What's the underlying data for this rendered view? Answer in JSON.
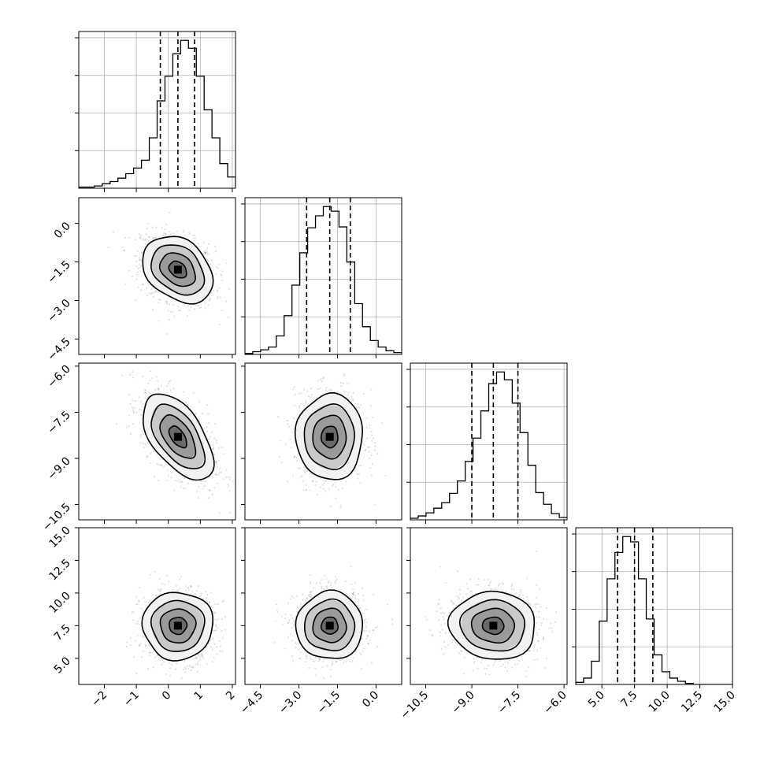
{
  "chart_data": {
    "type": "corner",
    "title": "",
    "grid": true,
    "parameters": [
      {
        "label": "",
        "range": [
          -2.8,
          2.1
        ],
        "ticks": [
          -2,
          -1,
          0,
          1,
          2
        ],
        "tick_labels": [
          "−2",
          "−1",
          "0",
          "1",
          "2"
        ],
        "quantiles": [
          -0.25,
          0.3,
          0.82
        ],
        "hist": {
          "bin_start": -2.8,
          "bin_width": 0.245,
          "counts": [
            1,
            1,
            2,
            4,
            6,
            9,
            13,
            18,
            25,
            45,
            78,
            100,
            120,
            132,
            125,
            100,
            70,
            45,
            22,
            10,
            2
          ]
        }
      },
      {
        "label": "",
        "range": [
          -5.1,
          1.0
        ],
        "ticks": [
          -4.5,
          -3.0,
          -1.5,
          0.0
        ],
        "tick_labels": [
          "−4.5",
          "−3.0",
          "−1.5",
          "0.0"
        ],
        "quantiles": [
          -2.7,
          -1.8,
          -1.0
        ],
        "hist": {
          "bin_start": -5.1,
          "bin_width": 0.305,
          "counts": [
            1,
            3,
            5,
            8,
            20,
            42,
            75,
            110,
            137,
            150,
            160,
            155,
            138,
            100,
            55,
            30,
            15,
            8,
            4,
            2
          ]
        }
      },
      {
        "label": "",
        "range": [
          -11.0,
          -5.9
        ],
        "ticks": [
          -10.5,
          -9.0,
          -7.5,
          -6.0
        ],
        "tick_labels": [
          "−10.5",
          "−9.0",
          "−7.5",
          "−6.0"
        ],
        "quantiles": [
          -9.0,
          -8.3,
          -7.5
        ],
        "hist": {
          "bin_start": -11.0,
          "bin_width": 0.255,
          "counts": [
            2,
            5,
            9,
            15,
            22,
            34,
            50,
            75,
            105,
            140,
            175,
            190,
            180,
            150,
            112,
            70,
            35,
            20,
            8,
            3
          ]
        }
      },
      {
        "label": "",
        "range": [
          3.0,
          15.0
        ],
        "ticks": [
          5.0,
          7.5,
          10.0,
          12.5,
          15.0
        ],
        "tick_labels": [
          "5.0",
          "7.5",
          "10.0",
          "12.5",
          "15.0"
        ],
        "quantiles": [
          6.2,
          7.5,
          8.9
        ],
        "hist": {
          "bin_start": 3.0,
          "bin_width": 0.6,
          "counts": [
            2,
            6,
            22,
            60,
            100,
            125,
            140,
            135,
            100,
            62,
            28,
            12,
            6,
            3,
            1,
            0,
            0,
            0,
            0,
            0
          ]
        }
      }
    ],
    "pairs": [
      {
        "row": 1,
        "col": 0,
        "center": [
          0.3,
          -1.8
        ],
        "sd": [
          0.55,
          0.65
        ],
        "corr": -0.3
      },
      {
        "row": 2,
        "col": 0,
        "center": [
          0.3,
          -8.3
        ],
        "sd": [
          0.55,
          0.7
        ],
        "corr": -0.55
      },
      {
        "row": 2,
        "col": 1,
        "center": [
          -1.8,
          -8.3
        ],
        "sd": [
          0.65,
          0.7
        ],
        "corr": 0.0
      },
      {
        "row": 3,
        "col": 0,
        "center": [
          0.3,
          7.5
        ],
        "sd": [
          0.55,
          1.3
        ],
        "corr": 0.0
      },
      {
        "row": 3,
        "col": 1,
        "center": [
          -1.8,
          7.5
        ],
        "sd": [
          0.65,
          1.3
        ],
        "corr": 0.0
      },
      {
        "row": 3,
        "col": 2,
        "center": [
          -8.3,
          7.5
        ],
        "sd": [
          0.7,
          1.3
        ],
        "corr": -0.05
      }
    ],
    "contour_levels_sigma": [
      0.5,
      1.0,
      1.5,
      2.0
    ]
  }
}
